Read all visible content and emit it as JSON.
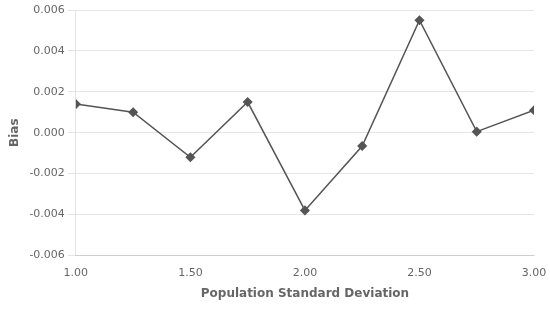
{
  "chart_data": {
    "type": "line",
    "x": [
      1.0,
      1.25,
      1.5,
      1.75,
      2.0,
      2.25,
      2.5,
      2.75,
      3.0
    ],
    "values": [
      0.0014,
      0.001,
      -0.0012,
      0.0015,
      -0.0038,
      -0.00065,
      0.0055,
      5e-05,
      0.0011
    ],
    "xlabel": "Population Standard Deviation",
    "ylabel": "Bias",
    "xlim": [
      1.0,
      3.0
    ],
    "ylim": [
      -0.006,
      0.006
    ],
    "xticks": [
      {
        "value": 1,
        "label": "1.00"
      },
      {
        "value": 1.5,
        "label": "1.50"
      },
      {
        "value": 2,
        "label": "2.00"
      },
      {
        "value": 2.5,
        "label": "2.50"
      },
      {
        "value": 3,
        "label": "3.00"
      }
    ],
    "yticks": [
      -0.006,
      -0.004,
      -0.002,
      {
        "value": 0,
        "label": "0.000"
      },
      0.002,
      0.004,
      0.006
    ],
    "color": "#555555",
    "marker": "diamond",
    "grid": "y"
  }
}
